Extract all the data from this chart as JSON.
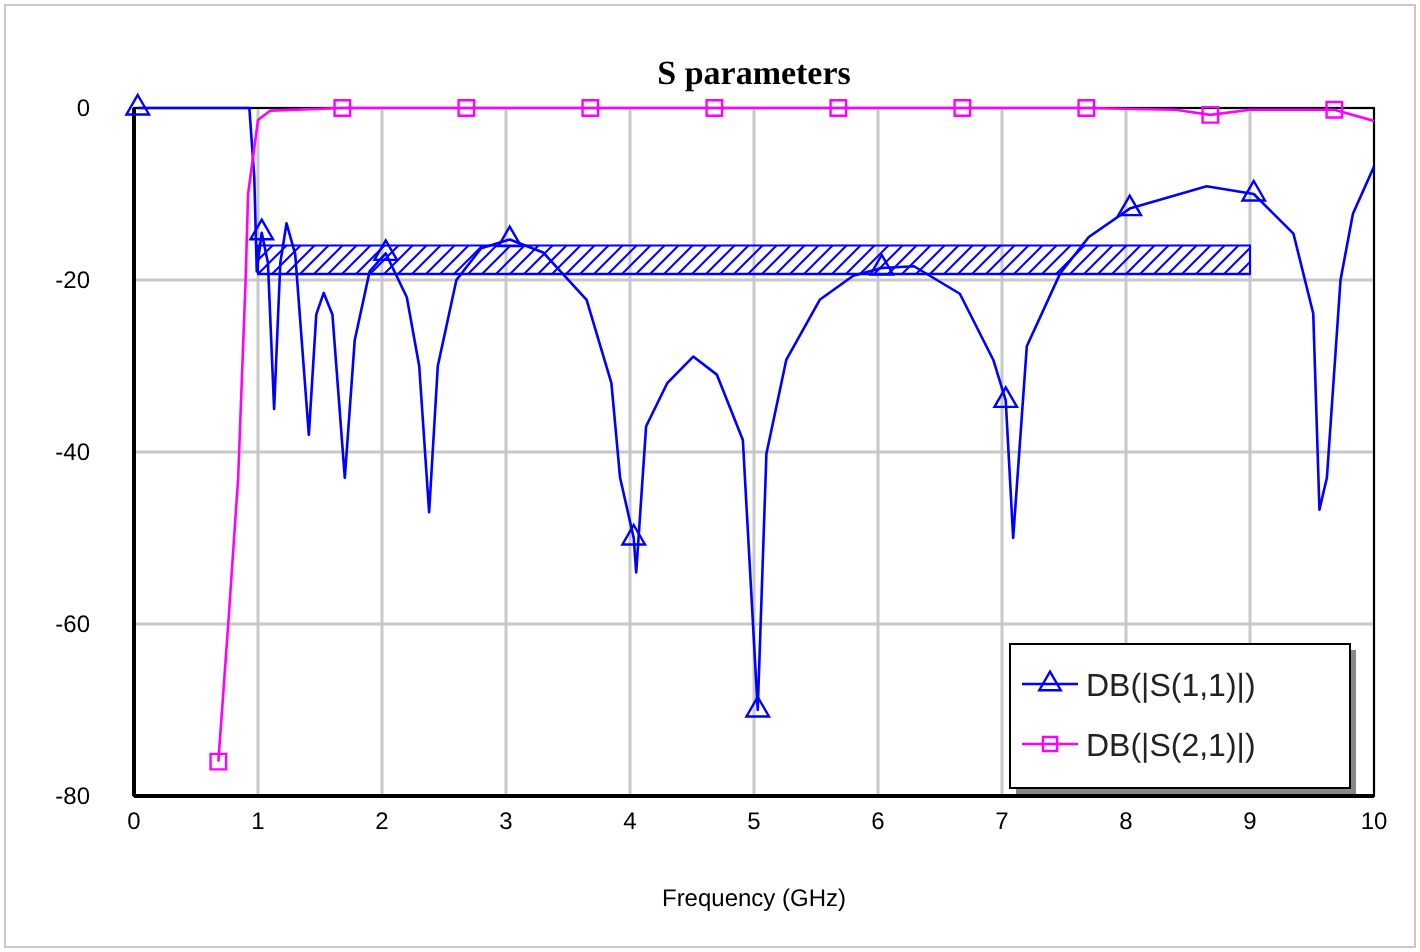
{
  "chart_data": {
    "type": "line",
    "title": "S parameters",
    "xlabel": "Frequency (GHz)",
    "xlim": [
      0,
      10
    ],
    "xticks": [
      0,
      1,
      2,
      3,
      4,
      5,
      6,
      7,
      8,
      9,
      10
    ],
    "ylim": [
      -80,
      0
    ],
    "yticks": [
      -80,
      -60,
      -40,
      -20,
      0
    ],
    "grid": true,
    "legend": "bottom right",
    "line_style": "solid",
    "series": [
      {
        "name": "DB(|S(1,1)|)",
        "color": "#0000ff",
        "x": [
          0.03,
          0.5,
          0.93,
          0.97,
          0.99,
          1.03,
          1.08,
          1.13,
          1.18,
          1.23,
          1.3,
          1.41,
          1.47,
          1.53,
          1.6,
          1.7,
          1.78,
          1.9,
          2.03,
          2.2,
          2.3,
          2.38,
          2.45,
          2.6,
          2.8,
          3.03,
          3.3,
          3.65,
          3.85,
          3.92,
          4.03,
          4.05,
          4.13,
          4.3,
          4.51,
          4.7,
          4.91,
          5.03,
          5.1,
          5.26,
          5.53,
          5.8,
          6.03,
          6.29,
          6.66,
          6.93,
          7.03,
          7.09,
          7.2,
          7.47,
          7.7,
          8.03,
          8.65,
          9.03,
          9.35,
          9.51,
          9.56,
          9.62,
          9.73,
          9.83,
          10
        ],
        "values": [
          0,
          0,
          0,
          -8,
          -19,
          -14.5,
          -18,
          -35,
          -18,
          -13.4,
          -17,
          -38,
          -24,
          -21.5,
          -24,
          -43,
          -27,
          -19,
          -16.9,
          -22,
          -30,
          -47,
          -30,
          -20,
          -16.3,
          -15.3,
          -16.8,
          -22.3,
          -32,
          -43,
          -50,
          -54,
          -37,
          -32,
          -28.9,
          -31,
          -38.6,
          -70,
          -40.2,
          -29.3,
          -22.3,
          -19.5,
          -18.6,
          -18.4,
          -21.6,
          -29.3,
          -34,
          -50,
          -27.7,
          -19.2,
          -15,
          -11.7,
          -9.1,
          -10,
          -14.6,
          -23.9,
          -46.7,
          -43,
          -20,
          -12.3,
          -6.8
        ]
      },
      {
        "type": "scatter",
        "color": "#0000ff",
        "marker": "triangle",
        "x": [
          0.03,
          1.03,
          2.03,
          3.03,
          4.03,
          5.03,
          6.03,
          7.03,
          8.03,
          9.03
        ],
        "values": [
          0,
          -14.5,
          -16.9,
          -15.3,
          -50,
          -70,
          -18.6,
          -34,
          -11.7,
          -10
        ]
      },
      {
        "name": "DB(|S(2,1)|)",
        "color": "#ff00ff",
        "x": [
          0.68,
          0.76,
          0.84,
          0.9,
          0.92,
          1.0,
          1.1,
          1.68,
          2.68,
          3.68,
          4.68,
          5.68,
          6.68,
          7.68,
          8.4,
          8.68,
          9.0,
          9.68,
          10
        ],
        "values": [
          -76,
          -60,
          -43,
          -20,
          -10,
          -1.4,
          -0.3,
          0,
          0,
          0,
          0,
          0,
          0,
          0,
          -0.2,
          -0.8,
          -0.2,
          -0.2,
          -1.5
        ]
      },
      {
        "type": "scatter",
        "color": "#ff00ff",
        "marker": "square",
        "x": [
          0.68,
          1.68,
          2.68,
          3.68,
          4.68,
          5.68,
          6.68,
          7.68,
          8.68,
          9.68
        ],
        "values": [
          -76,
          0,
          0,
          0,
          0,
          0,
          0,
          0,
          -0.8,
          -0.2
        ]
      },
      {
        "color": "#0000ff",
        "x": [
          1,
          9
        ],
        "values": [
          -19.3,
          -19.3
        ],
        "lower": [
          -19.3,
          -19.3
        ],
        "upper": [
          -16,
          -16
        ]
      }
    ]
  }
}
